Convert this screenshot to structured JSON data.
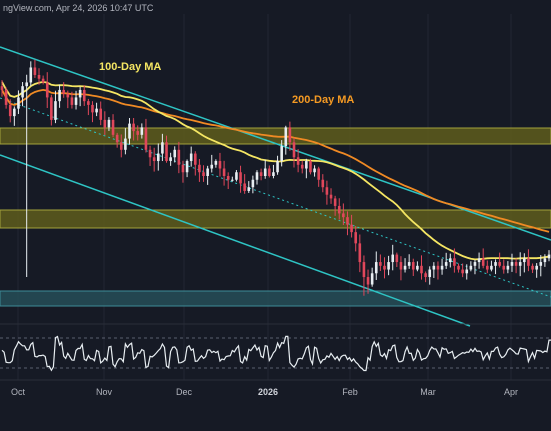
{
  "header": {
    "source_text": "ngView.com, Apr 24, 2026 10:47 UTC"
  },
  "chart_data": {
    "type": "candlestick",
    "x_axis_labels": [
      "Oct",
      "Nov",
      "Dec",
      "2026",
      "Feb",
      "Mar",
      "Apr"
    ],
    "annotations": [
      {
        "text": "100-Day MA",
        "color": "#f5e663"
      },
      {
        "text": "200-Day MA",
        "color": "#f59a23"
      }
    ],
    "ma100_color": "#f5e663",
    "ma200_color": "#f08a24",
    "channel_color": "#2ec4c4",
    "zone_fill_color": "#6b6a1c",
    "support_zone_color": "#2b5f6a",
    "up_candle_color": "#e8eef2",
    "down_candle_color": "#e0475b",
    "rsi_color": "#e8eef2",
    "price_series_close": [
      74,
      70,
      67,
      69,
      72,
      75,
      76,
      80,
      78,
      77,
      76,
      72,
      66,
      71,
      74,
      73,
      72,
      70,
      72,
      74,
      71,
      70,
      68,
      69,
      66,
      64,
      66,
      62,
      60,
      58,
      61,
      65,
      63,
      62,
      64,
      58,
      56,
      55,
      57,
      60,
      55,
      56,
      58,
      54,
      52,
      55,
      57,
      54,
      52,
      51,
      53,
      54,
      55,
      53,
      51,
      50,
      50,
      52,
      49,
      47,
      48,
      50,
      52,
      51,
      53,
      51,
      52,
      55,
      59,
      64,
      60,
      56,
      54,
      53,
      55,
      52,
      53,
      50,
      48,
      46,
      45,
      43,
      41,
      40,
      38,
      36,
      33,
      28,
      24,
      22,
      25,
      28,
      27,
      26,
      28,
      30,
      28,
      26,
      27,
      28,
      26,
      27,
      25,
      24,
      26,
      27,
      26,
      27,
      28,
      29,
      27,
      26,
      25,
      26,
      27,
      28,
      29,
      27,
      26,
      27,
      28,
      27,
      26,
      27,
      28,
      27,
      28,
      29,
      27,
      26,
      27,
      28,
      29,
      30
    ]
  }
}
